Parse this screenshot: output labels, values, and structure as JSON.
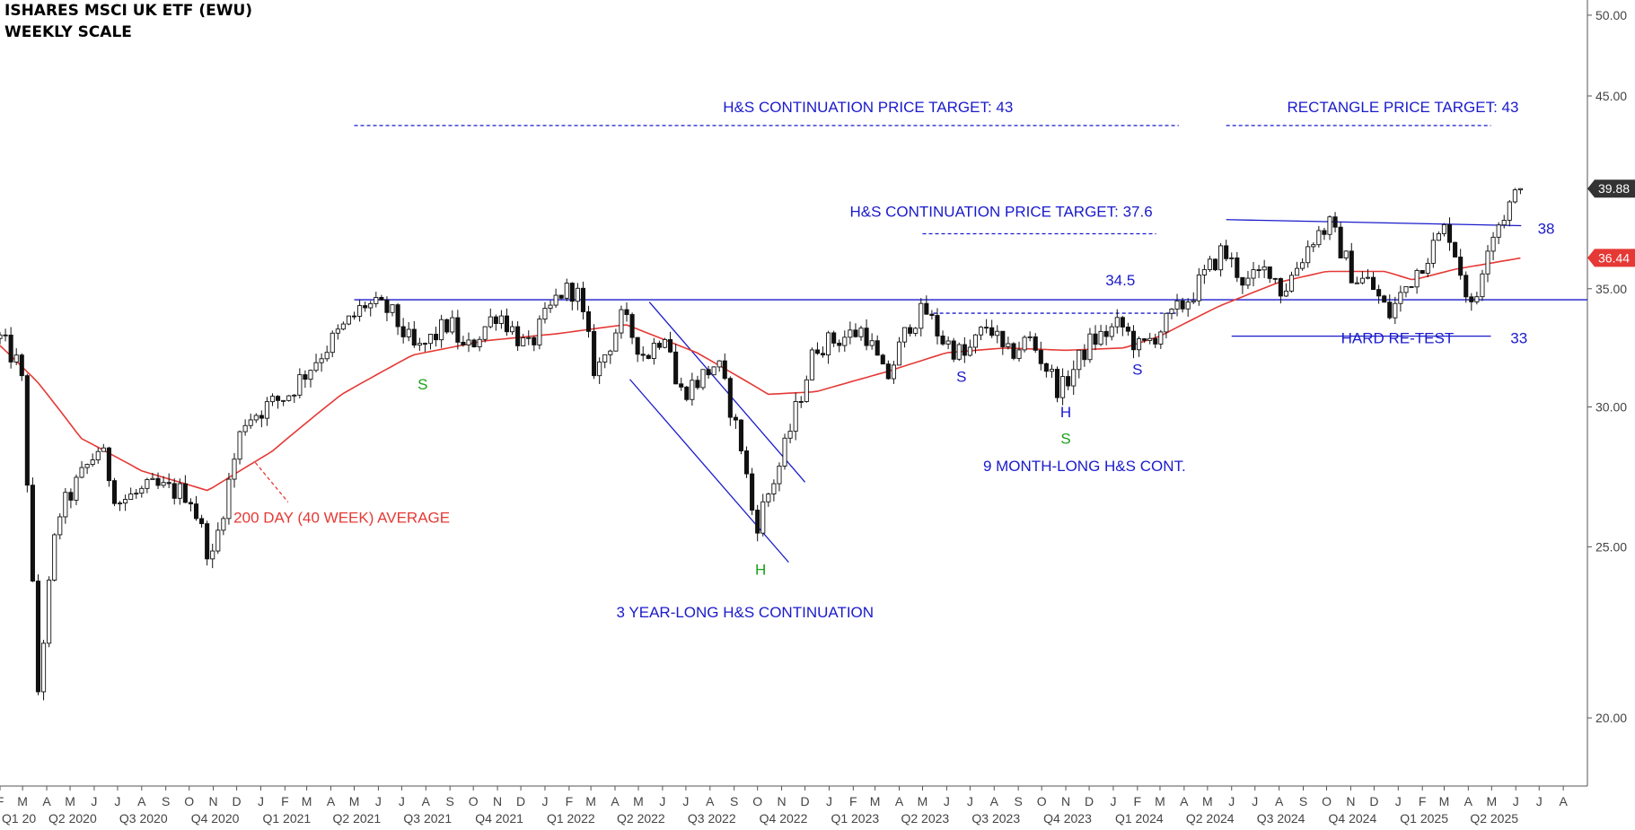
{
  "header": {
    "title": "ISHARES MSCI UK ETF (EWU)",
    "subtitle": "WEEKLY SCALE"
  },
  "chart_data": {
    "type": "candlestick",
    "title": "ISHARES MSCI UK ETF (EWU)",
    "subtitle": "WEEKLY SCALE",
    "y_scale": "log",
    "ylim": [
      18.3,
      51
    ],
    "y_ticks": [
      "50.00",
      "45.00",
      "35.00",
      "30.00",
      "25.00",
      "20.00"
    ],
    "x_start": "2020-02-01",
    "x_end": "2025-09-01",
    "x_month_labels": [
      "F",
      "M",
      "A",
      "M",
      "J",
      "J",
      "A",
      "S",
      "O",
      "N",
      "D",
      "J",
      "F",
      "M",
      "A",
      "M",
      "J",
      "J",
      "A",
      "S",
      "O",
      "N",
      "D",
      "J",
      "F",
      "M",
      "A",
      "M",
      "J",
      "J",
      "A",
      "S",
      "O",
      "N",
      "D",
      "J",
      "F",
      "M",
      "A",
      "M",
      "J",
      "J",
      "A",
      "S",
      "O",
      "N",
      "D",
      "J",
      "F",
      "M",
      "A",
      "M",
      "J",
      "J",
      "A",
      "S",
      "O",
      "N",
      "D",
      "J",
      "F",
      "M",
      "A",
      "M",
      "J",
      "J",
      "A"
    ],
    "x_quarter_labels": [
      "Q1 20",
      "Q2 2020",
      "Q3 2020",
      "Q4 2020",
      "Q1 2021",
      "Q2 2021",
      "Q3 2021",
      "Q4 2021",
      "Q1 2022",
      "Q2 2022",
      "Q3 2022",
      "Q4 2022",
      "Q1 2023",
      "Q2 2023",
      "Q3 2023",
      "Q4 2023",
      "Q1 2024",
      "Q2 2024",
      "Q3 2024",
      "Q4 2024",
      "Q1 2025",
      "Q2 2025"
    ],
    "last_price": {
      "label": "39.88",
      "value": 39.88,
      "color": "#333333"
    },
    "ma_price": {
      "label": "36.44",
      "value": 36.44,
      "color": "#e53935"
    },
    "ohlc_anchors": [
      [
        "2020-02-01",
        32.8
      ],
      [
        "2020-02-28",
        31.5
      ],
      [
        "2020-03-20",
        20.5
      ],
      [
        "2020-04-15",
        26.0
      ],
      [
        "2020-06-08",
        28.5
      ],
      [
        "2020-07-01",
        26.5
      ],
      [
        "2020-08-15",
        27.0
      ],
      [
        "2020-10-01",
        26.8
      ],
      [
        "2020-10-30",
        24.5
      ],
      [
        "2020-12-10",
        29.5
      ],
      [
        "2021-02-05",
        30.5
      ],
      [
        "2021-03-15",
        32.0
      ],
      [
        "2021-05-15",
        34.3
      ],
      [
        "2021-06-15",
        34.0
      ],
      [
        "2021-07-20",
        32.2
      ],
      [
        "2021-09-01",
        33.5
      ],
      [
        "2021-09-20",
        32.2
      ],
      [
        "2021-11-01",
        34.0
      ],
      [
        "2021-12-10",
        32.3
      ],
      [
        "2022-01-20",
        34.8
      ],
      [
        "2022-02-10",
        35.0
      ],
      [
        "2022-03-07",
        31.3
      ],
      [
        "2022-04-10",
        33.7
      ],
      [
        "2022-05-10",
        32.0
      ],
      [
        "2022-06-07",
        33.3
      ],
      [
        "2022-06-20",
        30.5
      ],
      [
        "2022-07-15",
        31.0
      ],
      [
        "2022-08-10",
        31.8
      ],
      [
        "2022-09-10",
        28.5
      ],
      [
        "2022-09-28",
        25.6
      ],
      [
        "2022-11-01",
        28.0
      ],
      [
        "2022-12-15",
        32.5
      ],
      [
        "2023-01-15",
        32.8
      ],
      [
        "2023-02-15",
        33.2
      ],
      [
        "2023-03-15",
        31.0
      ],
      [
        "2023-04-15",
        33.5
      ],
      [
        "2023-05-05",
        34.0
      ],
      [
        "2023-05-25",
        32.8
      ],
      [
        "2023-06-25",
        32.0
      ],
      [
        "2023-07-25",
        33.5
      ],
      [
        "2023-08-15",
        32.0
      ],
      [
        "2023-09-15",
        32.8
      ],
      [
        "2023-10-25",
        30.6
      ],
      [
        "2023-12-01",
        32.6
      ],
      [
        "2024-01-10",
        33.4
      ],
      [
        "2024-02-05",
        32.3
      ],
      [
        "2024-03-10",
        33.5
      ],
      [
        "2024-04-10",
        34.7
      ],
      [
        "2024-05-20",
        36.8
      ],
      [
        "2024-06-20",
        35.2
      ],
      [
        "2024-07-20",
        36.0
      ],
      [
        "2024-08-05",
        34.8
      ],
      [
        "2024-09-15",
        37.5
      ],
      [
        "2024-10-05",
        38.0
      ],
      [
        "2024-11-05",
        35.5
      ],
      [
        "2024-11-25",
        35.3
      ],
      [
        "2024-12-20",
        33.8
      ],
      [
        "2025-01-20",
        35.6
      ],
      [
        "2025-03-05",
        38.0
      ],
      [
        "2025-04-07",
        33.8
      ],
      [
        "2025-04-25",
        37.2
      ],
      [
        "2025-05-20",
        38.8
      ],
      [
        "2025-06-09",
        39.88
      ]
    ],
    "ma_anchors": [
      [
        "2020-02-01",
        32.5
      ],
      [
        "2020-03-20",
        31.0
      ],
      [
        "2020-05-15",
        28.8
      ],
      [
        "2020-08-01",
        27.6
      ],
      [
        "2020-10-25",
        26.9
      ],
      [
        "2021-01-15",
        28.3
      ],
      [
        "2021-04-15",
        30.5
      ],
      [
        "2021-07-15",
        32.1
      ],
      [
        "2021-10-15",
        32.7
      ],
      [
        "2022-01-15",
        33.0
      ],
      [
        "2022-04-15",
        33.4
      ],
      [
        "2022-07-15",
        32.2
      ],
      [
        "2022-10-15",
        30.5
      ],
      [
        "2022-12-15",
        30.6
      ],
      [
        "2023-03-15",
        31.4
      ],
      [
        "2023-06-01",
        32.2
      ],
      [
        "2023-08-15",
        32.4
      ],
      [
        "2023-11-01",
        32.3
      ],
      [
        "2024-01-15",
        32.4
      ],
      [
        "2024-03-01",
        32.9
      ],
      [
        "2024-05-15",
        34.2
      ],
      [
        "2024-08-01",
        35.3
      ],
      [
        "2024-10-01",
        35.8
      ],
      [
        "2024-12-15",
        35.8
      ],
      [
        "2025-01-20",
        35.4
      ],
      [
        "2025-03-15",
        35.9
      ],
      [
        "2025-06-09",
        36.44
      ]
    ],
    "annotations": [
      {
        "name": "hs-target-43-label",
        "text": "H&S CONTINUATION PRICE TARGET: 43",
        "color": "#1a1acc",
        "x": "2023-02-20",
        "y": 44.05
      },
      {
        "name": "rectangle-target-43-label",
        "text": "RECTANGLE PRICE TARGET: 43",
        "color": "#1a1acc",
        "x": "2025-01-07",
        "y": 44.05
      },
      {
        "name": "hs-target-37-6-label",
        "text": "H&S CONTINUATION PRICE TARGET: 37.6",
        "color": "#1a1acc",
        "x": "2023-08-10",
        "y": 38.45
      },
      {
        "name": "level-38-label",
        "text": "38",
        "color": "#1a1acc",
        "x": "2025-07-10",
        "y": 37.6
      },
      {
        "name": "level-34-5-label",
        "text": "34.5",
        "color": "#1a1acc",
        "x": "2024-01-10",
        "y": 35.15
      },
      {
        "name": "hard-retest-label",
        "text": "HARD RE-TEST",
        "color": "#1a1acc",
        "x": "2024-12-31",
        "y": 32.6
      },
      {
        "name": "level-33-label",
        "text": "33",
        "color": "#1a1acc",
        "x": "2025-06-05",
        "y": 32.6
      },
      {
        "name": "ma-label",
        "text": "200 DAY (40 WEEK) AVERAGE",
        "color": "#e53935",
        "x": "2021-04-15",
        "y": 25.8
      },
      {
        "name": "left-shoulder-2021-label",
        "text": "S",
        "color": "#1aa01a",
        "x": "2021-07-28",
        "y": 30.7
      },
      {
        "name": "head-2022-label",
        "text": "H",
        "color": "#1aa01a",
        "x": "2022-10-05",
        "y": 24.1
      },
      {
        "name": "right-shoulder-2023-label",
        "text": "S",
        "color": "#1aa01a",
        "x": "2023-11-01",
        "y": 28.6
      },
      {
        "name": "big-hs-label",
        "text": "3 YEAR-LONG H&S CONTINUATION",
        "color": "#1a1acc",
        "x": "2022-09-15",
        "y": 22.8
      },
      {
        "name": "small-left-shoulder-label",
        "text": "S",
        "color": "#1a1acc",
        "x": "2023-06-20",
        "y": 31.0
      },
      {
        "name": "small-head-label",
        "text": "H",
        "color": "#1a1acc",
        "x": "2023-11-01",
        "y": 29.6
      },
      {
        "name": "small-right-shoulder-label",
        "text": "S",
        "color": "#1a1acc",
        "x": "2024-02-01",
        "y": 31.3
      },
      {
        "name": "small-hs-label",
        "text": "9 MONTH-LONG H&S CONT.",
        "color": "#1a1acc",
        "x": "2023-11-25",
        "y": 27.6
      }
    ],
    "lines": [
      {
        "name": "neckline-34-5",
        "color": "#1a1acc",
        "dashed": false,
        "x1": "2021-05-01",
        "y1": 34.5,
        "x2": "2025-09-01",
        "y2": 34.5
      },
      {
        "name": "target-43-dashed-left",
        "color": "#1a1acc",
        "dashed": true,
        "x1": "2021-05-01",
        "y1": 43.3,
        "x2": "2024-03-25",
        "y2": 43.3
      },
      {
        "name": "target-43-dashed-right",
        "color": "#1a1acc",
        "dashed": true,
        "x1": "2024-05-25",
        "y1": 43.3,
        "x2": "2025-04-30",
        "y2": 43.3
      },
      {
        "name": "target-37-6-dashed",
        "color": "#1a1acc",
        "dashed": true,
        "x1": "2023-05-01",
        "y1": 37.6,
        "x2": "2024-02-25",
        "y2": 37.6
      },
      {
        "name": "neckline-small-dashed",
        "color": "#1a1acc",
        "dashed": true,
        "x1": "2023-05-15",
        "y1": 33.9,
        "x2": "2024-03-25",
        "y2": 33.9
      },
      {
        "name": "rectangle-top-38",
        "color": "#1a1acc",
        "dashed": false,
        "x1": "2024-05-25",
        "y1": 38.3,
        "x2": "2025-06-08",
        "y2": 38.0
      },
      {
        "name": "rectangle-bottom-33",
        "color": "#1a1acc",
        "dashed": false,
        "x1": "2024-06-01",
        "y1": 32.9,
        "x2": "2025-04-30",
        "y2": 32.9
      },
      {
        "name": "channel-upper",
        "color": "#1a1acc",
        "dashed": false,
        "x1": "2022-05-15",
        "y1": 34.4,
        "x2": "2022-12-01",
        "y2": 27.2
      },
      {
        "name": "channel-lower",
        "color": "#1a1acc",
        "dashed": false,
        "x1": "2022-04-20",
        "y1": 31.1,
        "x2": "2022-11-10",
        "y2": 24.5
      },
      {
        "name": "ma-label-pointer",
        "color": "#e53935",
        "dashed": true,
        "x1": "2020-12-25",
        "y1": 27.9,
        "x2": "2021-02-05",
        "y2": 26.5
      }
    ]
  }
}
